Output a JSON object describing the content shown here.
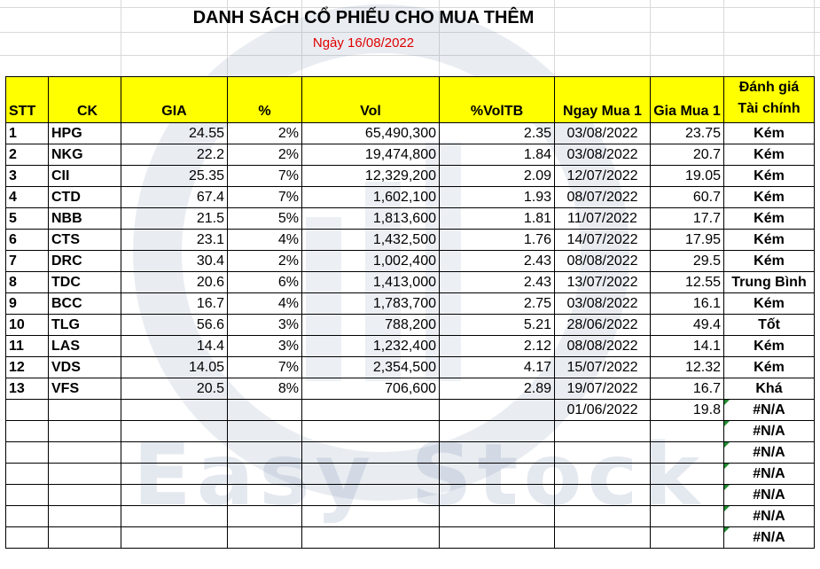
{
  "title": "DANH SÁCH CỔ PHIẾU CHO MUA THÊM",
  "subtitle": "Ngày 16/08/2022",
  "watermark": "Easy Stock",
  "colors": {
    "header_fill": "#ffff00",
    "subtitle": "#e00000",
    "error_flag": "#1e8a2e"
  },
  "headers": {
    "stt": "STT",
    "ck": "CK",
    "gia": "GIA",
    "pct": "%",
    "vol": "Vol",
    "voltb": "%VolTB",
    "ngay_mua": "Ngay Mua 1",
    "gia_mua": "Gia Mua 1",
    "danh_gia_1": "Đánh giá",
    "danh_gia_2": "Tài chính"
  },
  "rows": [
    {
      "stt": "1",
      "ck": "HPG",
      "gia": "24.55",
      "pct": "2%",
      "vol": "65,490,300",
      "voltb": "2.35",
      "ngay": "03/08/2022",
      "gia_mua": "23.75",
      "eval": "Kém"
    },
    {
      "stt": "2",
      "ck": "NKG",
      "gia": "22.2",
      "pct": "2%",
      "vol": "19,474,800",
      "voltb": "1.84",
      "ngay": "03/08/2022",
      "gia_mua": "20.7",
      "eval": "Kém"
    },
    {
      "stt": "3",
      "ck": "CII",
      "gia": "25.35",
      "pct": "7%",
      "vol": "12,329,200",
      "voltb": "2.09",
      "ngay": "12/07/2022",
      "gia_mua": "19.05",
      "eval": "Kém"
    },
    {
      "stt": "4",
      "ck": "CTD",
      "gia": "67.4",
      "pct": "7%",
      "vol": "1,602,100",
      "voltb": "1.93",
      "ngay": "08/07/2022",
      "gia_mua": "60.7",
      "eval": "Kém"
    },
    {
      "stt": "5",
      "ck": "NBB",
      "gia": "21.5",
      "pct": "5%",
      "vol": "1,813,600",
      "voltb": "1.81",
      "ngay": "11/07/2022",
      "gia_mua": "17.7",
      "eval": "Kém"
    },
    {
      "stt": "6",
      "ck": "CTS",
      "gia": "23.1",
      "pct": "4%",
      "vol": "1,432,500",
      "voltb": "1.76",
      "ngay": "14/07/2022",
      "gia_mua": "17.95",
      "eval": "Kém"
    },
    {
      "stt": "7",
      "ck": "DRC",
      "gia": "30.4",
      "pct": "2%",
      "vol": "1,002,400",
      "voltb": "2.43",
      "ngay": "08/08/2022",
      "gia_mua": "29.5",
      "eval": "Kém"
    },
    {
      "stt": "8",
      "ck": "TDC",
      "gia": "20.6",
      "pct": "6%",
      "vol": "1,413,000",
      "voltb": "2.43",
      "ngay": "13/07/2022",
      "gia_mua": "12.55",
      "eval": "Trung Bình"
    },
    {
      "stt": "9",
      "ck": "BCC",
      "gia": "16.7",
      "pct": "4%",
      "vol": "1,783,700",
      "voltb": "2.75",
      "ngay": "03/08/2022",
      "gia_mua": "16.1",
      "eval": "Kém"
    },
    {
      "stt": "10",
      "ck": "TLG",
      "gia": "56.6",
      "pct": "3%",
      "vol": "788,200",
      "voltb": "5.21",
      "ngay": "28/06/2022",
      "gia_mua": "49.4",
      "eval": "Tốt"
    },
    {
      "stt": "11",
      "ck": "LAS",
      "gia": "14.4",
      "pct": "3%",
      "vol": "1,232,400",
      "voltb": "2.12",
      "ngay": "08/08/2022",
      "gia_mua": "14.1",
      "eval": "Kém"
    },
    {
      "stt": "12",
      "ck": "VDS",
      "gia": "14.05",
      "pct": "7%",
      "vol": "2,354,500",
      "voltb": "4.17",
      "ngay": "15/07/2022",
      "gia_mua": "12.32",
      "eval": "Kém"
    },
    {
      "stt": "13",
      "ck": "VFS",
      "gia": "20.5",
      "pct": "8%",
      "vol": "706,600",
      "voltb": "2.89",
      "ngay": "19/07/2022",
      "gia_mua": "16.7",
      "eval": "Khá"
    },
    {
      "stt": "",
      "ck": "",
      "gia": "",
      "pct": "",
      "vol": "",
      "voltb": "",
      "ngay": "01/06/2022",
      "gia_mua": "19.8",
      "eval": "#N/A"
    },
    {
      "stt": "",
      "ck": "",
      "gia": "",
      "pct": "",
      "vol": "",
      "voltb": "",
      "ngay": "",
      "gia_mua": "",
      "eval": "#N/A"
    },
    {
      "stt": "",
      "ck": "",
      "gia": "",
      "pct": "",
      "vol": "",
      "voltb": "",
      "ngay": "",
      "gia_mua": "",
      "eval": "#N/A"
    },
    {
      "stt": "",
      "ck": "",
      "gia": "",
      "pct": "",
      "vol": "",
      "voltb": "",
      "ngay": "",
      "gia_mua": "",
      "eval": "#N/A"
    },
    {
      "stt": "",
      "ck": "",
      "gia": "",
      "pct": "",
      "vol": "",
      "voltb": "",
      "ngay": "",
      "gia_mua": "",
      "eval": "#N/A"
    },
    {
      "stt": "",
      "ck": "",
      "gia": "",
      "pct": "",
      "vol": "",
      "voltb": "",
      "ngay": "",
      "gia_mua": "",
      "eval": "#N/A"
    },
    {
      "stt": "",
      "ck": "",
      "gia": "",
      "pct": "",
      "vol": "",
      "voltb": "",
      "ngay": "",
      "gia_mua": "",
      "eval": "#N/A"
    }
  ]
}
